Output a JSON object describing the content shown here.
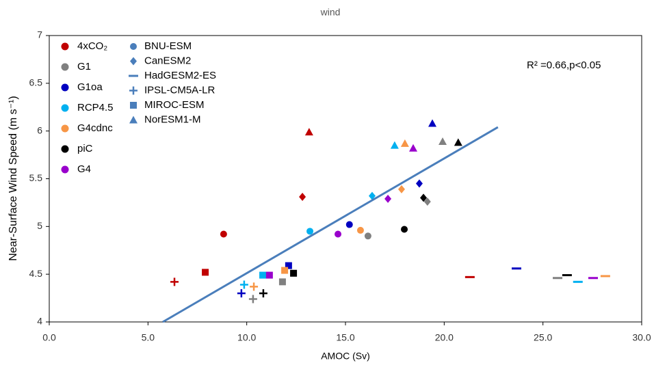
{
  "chart_data": {
    "type": "scatter",
    "title": "wind",
    "x_label": "AMOC (Sv)",
    "y_label": "Near-Surface Wind Speed (m s⁻¹)",
    "annotation": "R² =0.66,p<0.05",
    "xlim": [
      0,
      30
    ],
    "ylim": [
      4,
      7
    ],
    "xticks": [
      {
        "value": 0,
        "label": "0.0"
      },
      {
        "value": 5,
        "label": "5.0"
      },
      {
        "value": 10,
        "label": "10.0"
      },
      {
        "value": 15,
        "label": "15.0"
      },
      {
        "value": 20,
        "label": "20.0"
      },
      {
        "value": 25,
        "label": "25.0"
      },
      {
        "value": 30,
        "label": "30.0"
      }
    ],
    "yticks": [
      4,
      4.5,
      5,
      5.5,
      6,
      6.5,
      7
    ],
    "grid": false,
    "models": [
      {
        "name": "BNU-ESM",
        "marker": "circle"
      },
      {
        "name": "CanESM2",
        "marker": "diamond"
      },
      {
        "name": "HadGESM2-ES",
        "marker": "dash"
      },
      {
        "name": "IPSL-CM5A-LR",
        "marker": "plus"
      },
      {
        "name": "MIROC-ESM",
        "marker": "square"
      },
      {
        "name": "NorESM1-M",
        "marker": "triangle"
      }
    ],
    "model_color": "#4a7ebb",
    "series": [
      {
        "name": "4xCO₂",
        "color": "#c00000",
        "x": [
          8.83,
          12.82,
          21.3,
          6.34,
          7.9,
          13.16
        ],
        "y": [
          4.92,
          5.31,
          4.47,
          4.42,
          4.52,
          5.99
        ]
      },
      {
        "name": "G1",
        "color": "#808080",
        "x": [
          16.14,
          19.15,
          25.74,
          10.32,
          11.81,
          19.92
        ],
        "y": [
          4.9,
          5.26,
          4.46,
          4.24,
          4.42,
          5.89
        ]
      },
      {
        "name": "G1oa",
        "color": "#0000c0",
        "x": [
          15.2,
          18.74,
          23.66,
          9.73,
          12.12,
          19.4
        ],
        "y": [
          5.02,
          5.45,
          4.56,
          4.3,
          4.59,
          6.08
        ]
      },
      {
        "name": "RCP4.5",
        "color": "#00b0f0",
        "x": [
          13.2,
          16.35,
          26.77,
          9.87,
          10.81,
          17.49
        ],
        "y": [
          4.95,
          5.32,
          4.42,
          4.39,
          4.49,
          5.85
        ]
      },
      {
        "name": "G4cdnc",
        "color": "#f79646",
        "x": [
          15.76,
          17.84,
          28.16,
          10.36,
          11.92,
          18.01
        ],
        "y": [
          4.96,
          5.39,
          4.48,
          4.37,
          4.54,
          5.87
        ]
      },
      {
        "name": "piC",
        "color": "#000000",
        "x": [
          17.98,
          18.95,
          26.22,
          10.84,
          12.37,
          20.71
        ],
        "y": [
          4.97,
          5.3,
          4.49,
          4.3,
          4.51,
          5.88
        ]
      },
      {
        "name": "G4",
        "color": "#9900cc",
        "x": [
          14.62,
          17.15,
          27.54,
          null,
          11.15,
          18.43
        ],
        "y": [
          4.92,
          5.29,
          4.46,
          null,
          4.49,
          5.82
        ]
      }
    ],
    "fit_line": {
      "color": "#4a7ebb",
      "x": [
        5.75,
        22.72
      ],
      "y": [
        4.0,
        6.04
      ]
    }
  }
}
